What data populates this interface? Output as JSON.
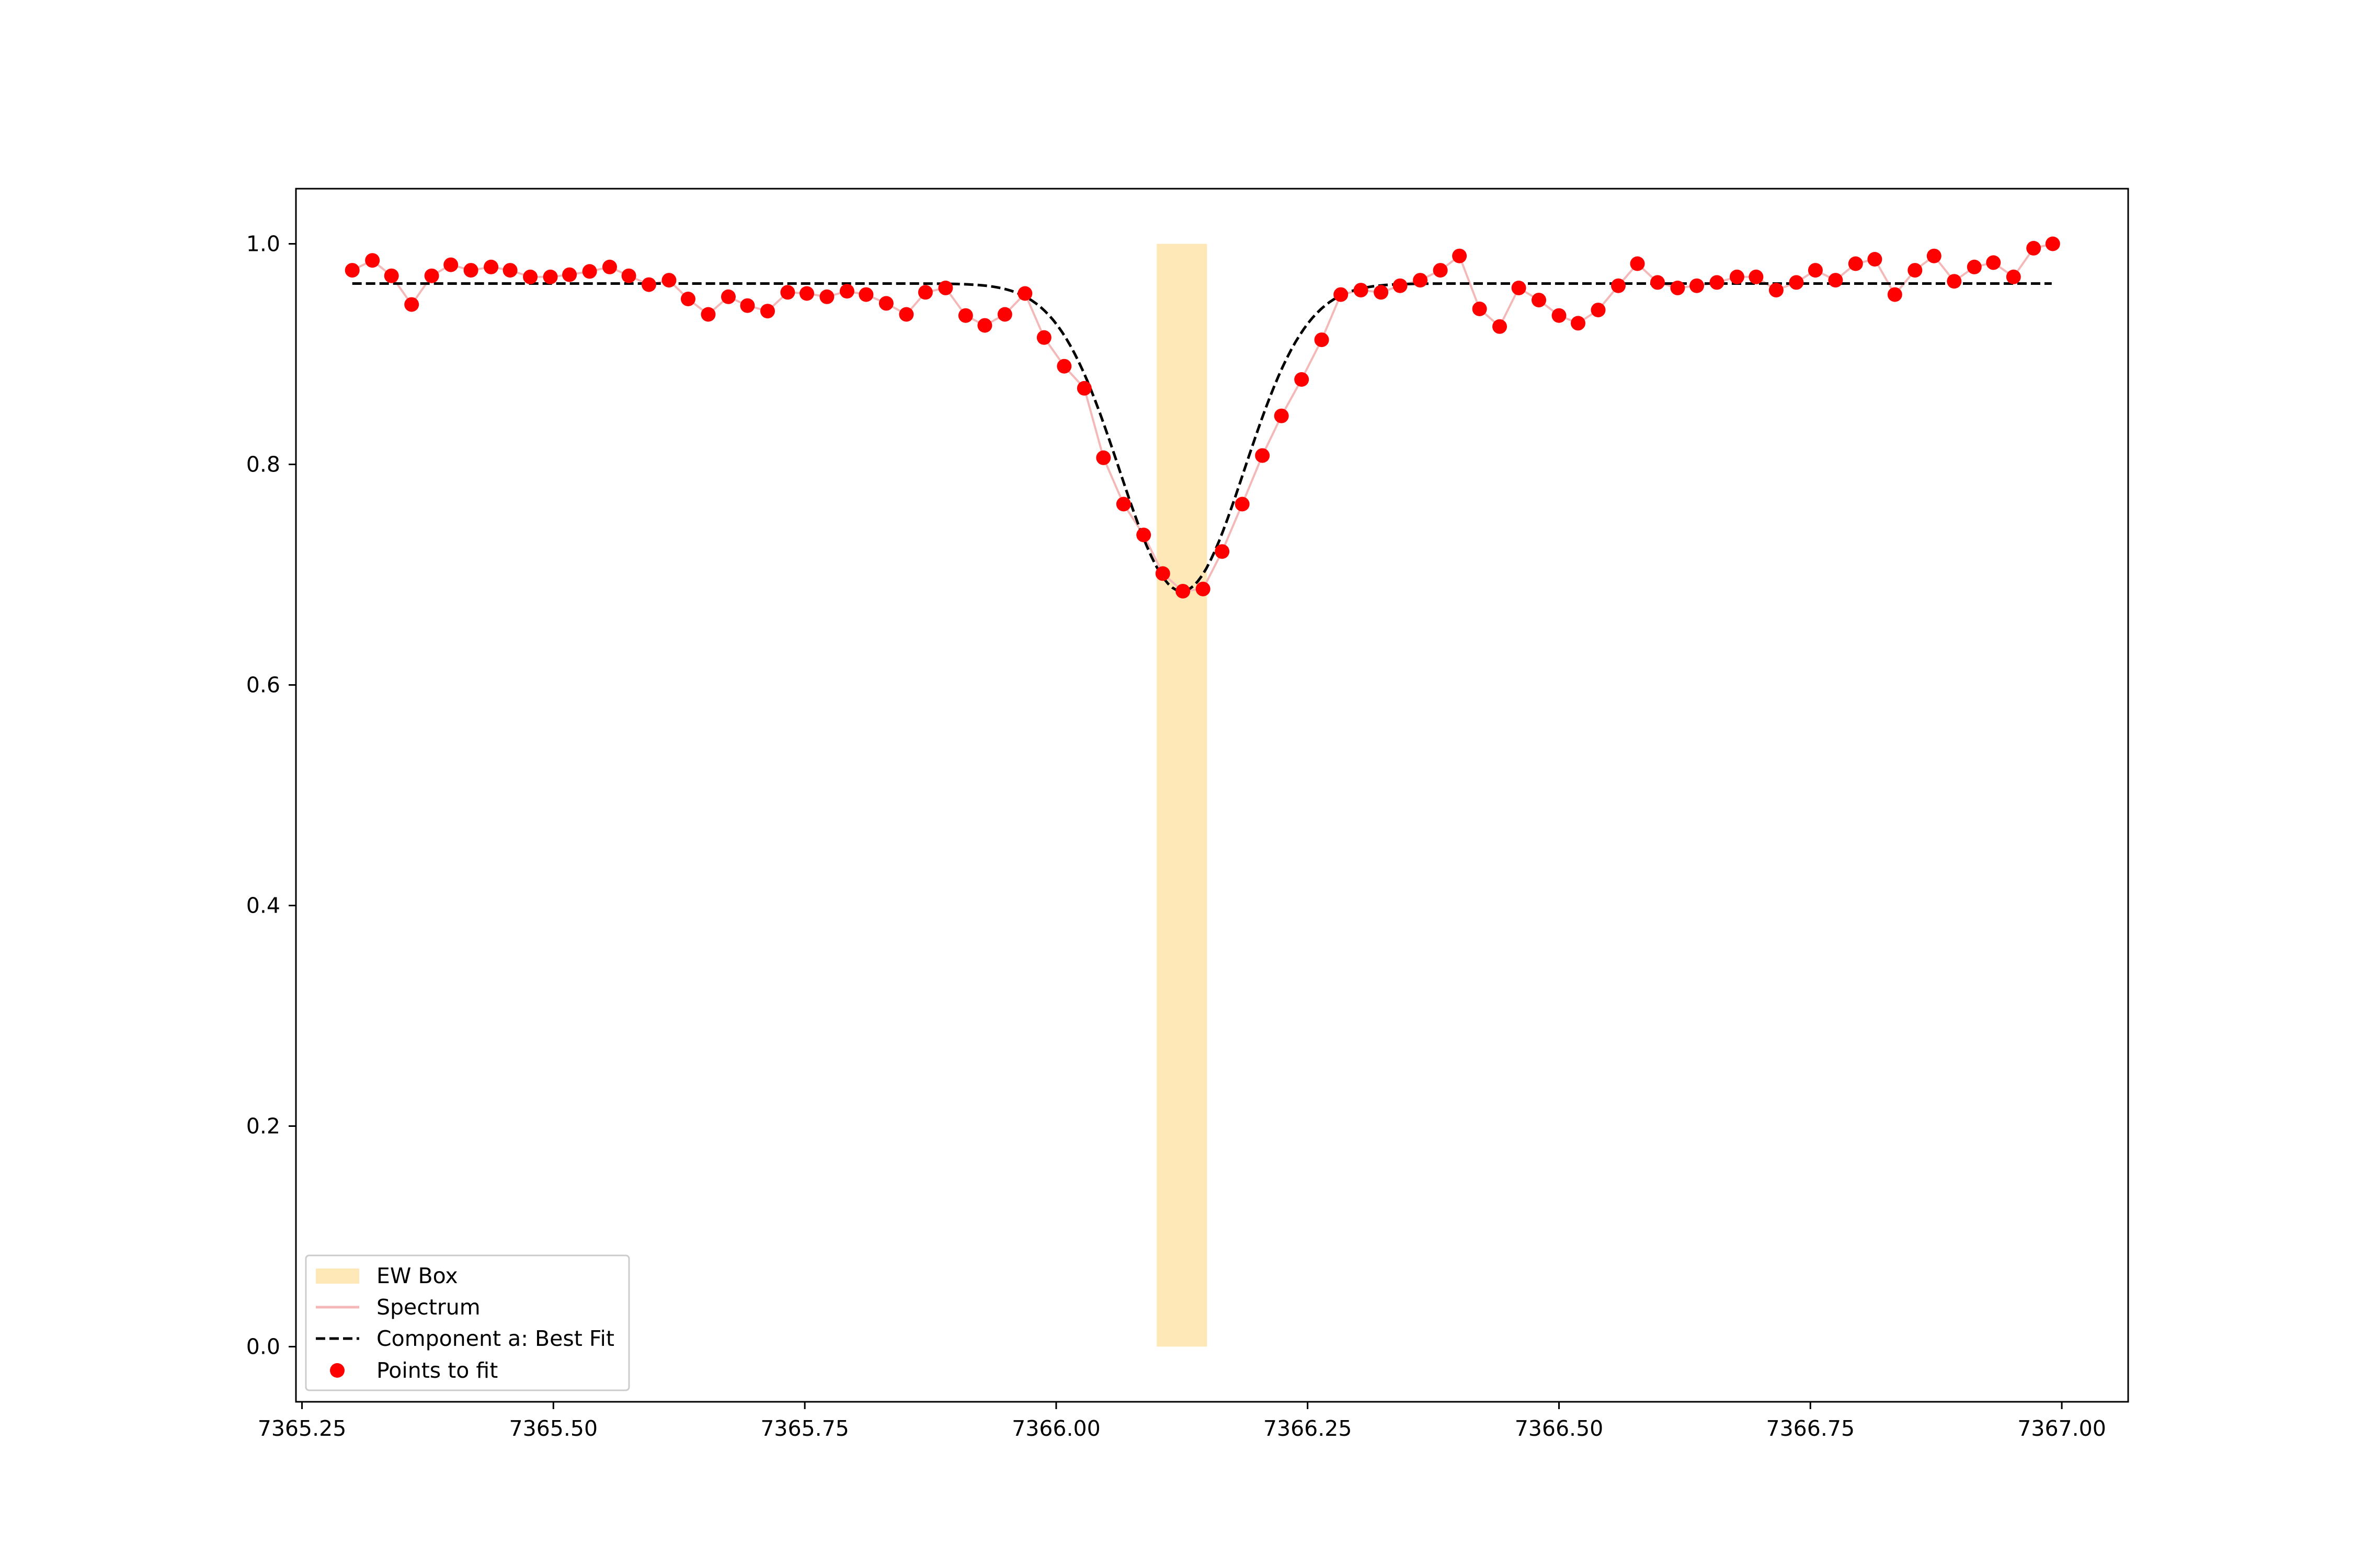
{
  "chart_data": {
    "type": "scatter",
    "title": "",
    "xlabel": "",
    "ylabel": "",
    "xlim": [
      7365.244,
      7367.066
    ],
    "ylim": [
      -0.05,
      1.05
    ],
    "grid": false,
    "legend_position": "lower-left",
    "x_ticks": [
      7365.25,
      7365.5,
      7365.75,
      7366.0,
      7366.25,
      7366.5,
      7366.75,
      7367.0
    ],
    "x_tick_labels": [
      "7365.25",
      "7365.50",
      "7365.75",
      "7366.00",
      "7366.25",
      "7366.50",
      "7366.75",
      "7367.00"
    ],
    "y_ticks": [
      0.0,
      0.2,
      0.4,
      0.6,
      0.8,
      1.0
    ],
    "y_tick_labels": [
      "0.0",
      "0.2",
      "0.4",
      "0.6",
      "0.8",
      "1.0"
    ],
    "ew_box": {
      "name": "EW Box",
      "x_start": 7366.1,
      "x_end": 7366.15,
      "y_start": 0.0,
      "y_end": 1.0,
      "color": "#ffe8b8"
    },
    "spectrum": {
      "name": "Spectrum",
      "color": "#f4b8b8"
    },
    "points": {
      "name": "Points to fit",
      "color": "#ff0000"
    },
    "fit": {
      "name": "Component a: Best Fit",
      "color": "#000000",
      "continuum": 0.964,
      "center": 7366.125,
      "depth": 0.279,
      "sigma": 0.062,
      "x_range": [
        7365.3,
        7366.99
      ]
    },
    "x": [
      7365.3,
      7365.32,
      7365.339,
      7365.359,
      7365.379,
      7365.398,
      7365.418,
      7365.438,
      7365.457,
      7365.477,
      7365.497,
      7365.516,
      7365.536,
      7365.556,
      7365.575,
      7365.595,
      7365.615,
      7365.634,
      7365.654,
      7365.674,
      7365.693,
      7365.713,
      7365.733,
      7365.752,
      7365.772,
      7365.792,
      7365.811,
      7365.831,
      7365.851,
      7365.87,
      7365.89,
      7365.91,
      7365.929,
      7365.949,
      7365.969,
      7365.988,
      7366.008,
      7366.028,
      7366.047,
      7366.067,
      7366.087,
      7366.106,
      7366.126,
      7366.146,
      7366.165,
      7366.185,
      7366.205,
      7366.224,
      7366.244,
      7366.264,
      7366.283,
      7366.303,
      7366.323,
      7366.342,
      7366.362,
      7366.382,
      7366.401,
      7366.421,
      7366.441,
      7366.46,
      7366.48,
      7366.5,
      7366.519,
      7366.539,
      7366.559,
      7366.578,
      7366.598,
      7366.618,
      7366.637,
      7366.657,
      7366.677,
      7366.696,
      7366.716,
      7366.736,
      7366.755,
      7366.775,
      7366.795,
      7366.814,
      7366.834,
      7366.854,
      7366.873,
      7366.893,
      7366.913,
      7366.932,
      7366.952,
      7366.972,
      7366.991
    ],
    "y": [
      0.976,
      0.985,
      0.971,
      0.945,
      0.971,
      0.981,
      0.976,
      0.979,
      0.976,
      0.97,
      0.97,
      0.972,
      0.975,
      0.979,
      0.971,
      0.963,
      0.967,
      0.95,
      0.936,
      0.952,
      0.944,
      0.939,
      0.956,
      0.955,
      0.952,
      0.957,
      0.954,
      0.946,
      0.936,
      0.956,
      0.96,
      0.935,
      0.926,
      0.936,
      0.955,
      0.915,
      0.889,
      0.869,
      0.806,
      0.764,
      0.736,
      0.701,
      0.685,
      0.687,
      0.721,
      0.764,
      0.808,
      0.844,
      0.877,
      0.913,
      0.954,
      0.958,
      0.956,
      0.962,
      0.967,
      0.976,
      0.989,
      0.941,
      0.925,
      0.96,
      0.949,
      0.935,
      0.928,
      0.94,
      0.962,
      0.982,
      0.965,
      0.96,
      0.962,
      0.965,
      0.97,
      0.97,
      0.958,
      0.965,
      0.976,
      0.967,
      0.982,
      0.986,
      0.954,
      0.976,
      0.989,
      0.966,
      0.979,
      0.983,
      0.97,
      0.996,
      1.0
    ]
  }
}
